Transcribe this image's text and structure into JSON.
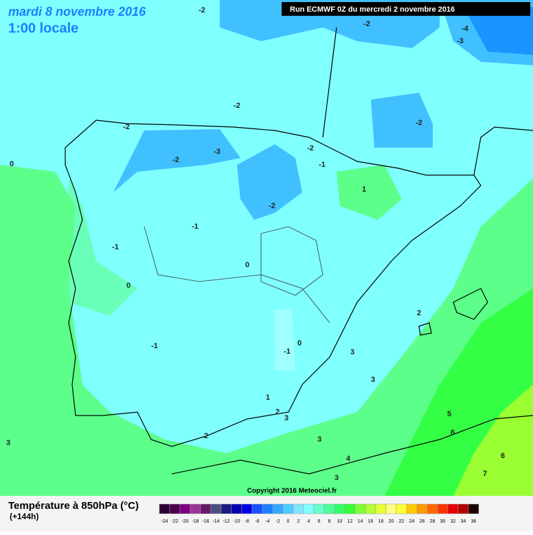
{
  "header": {
    "title": "mardi 8 novembre 2016",
    "subtitle": "1:00 locale",
    "run": "Run ECMWF 0Z du mercredi 2 novembre 2016"
  },
  "map": {
    "contour_labels": [
      -2,
      -2,
      -4,
      -3,
      -2,
      -2,
      -2,
      -3,
      -2,
      -2,
      -1,
      0,
      1,
      -2,
      -1,
      -1,
      0,
      0,
      2,
      -1,
      0,
      -1,
      3,
      3,
      1,
      2,
      3,
      5,
      6,
      2,
      3,
      3,
      4,
      6,
      7,
      3
    ]
  },
  "footer": {
    "copyright": "Copyright 2016 Meteociel.fr"
  },
  "legend": {
    "title": "Température à 850hPa (°C)",
    "lead_time": "(+144h)",
    "ticks": [
      -24,
      -22,
      -20,
      -18,
      -16,
      -14,
      -12,
      -10,
      -8,
      -6,
      -4,
      -2,
      0,
      2,
      4,
      6,
      8,
      10,
      12,
      14,
      16,
      18,
      20,
      22,
      24,
      26,
      28,
      30,
      32,
      34,
      36
    ],
    "colors": [
      "#2b0033",
      "#4d004d",
      "#800080",
      "#993399",
      "#661a66",
      "#4d4d80",
      "#1a1a80",
      "#0000b3",
      "#0000e6",
      "#1a4dff",
      "#1a80ff",
      "#33a6ff",
      "#4dccff",
      "#80e6ff",
      "#80ffff",
      "#66ffcc",
      "#4dff99",
      "#33ff66",
      "#33ff33",
      "#80ff33",
      "#b3ff33",
      "#e6ff33",
      "#ffff80",
      "#ffff33",
      "#ffcc00",
      "#ff9900",
      "#ff6600",
      "#ff3300",
      "#e60000",
      "#b30000",
      "#1a0000"
    ]
  }
}
